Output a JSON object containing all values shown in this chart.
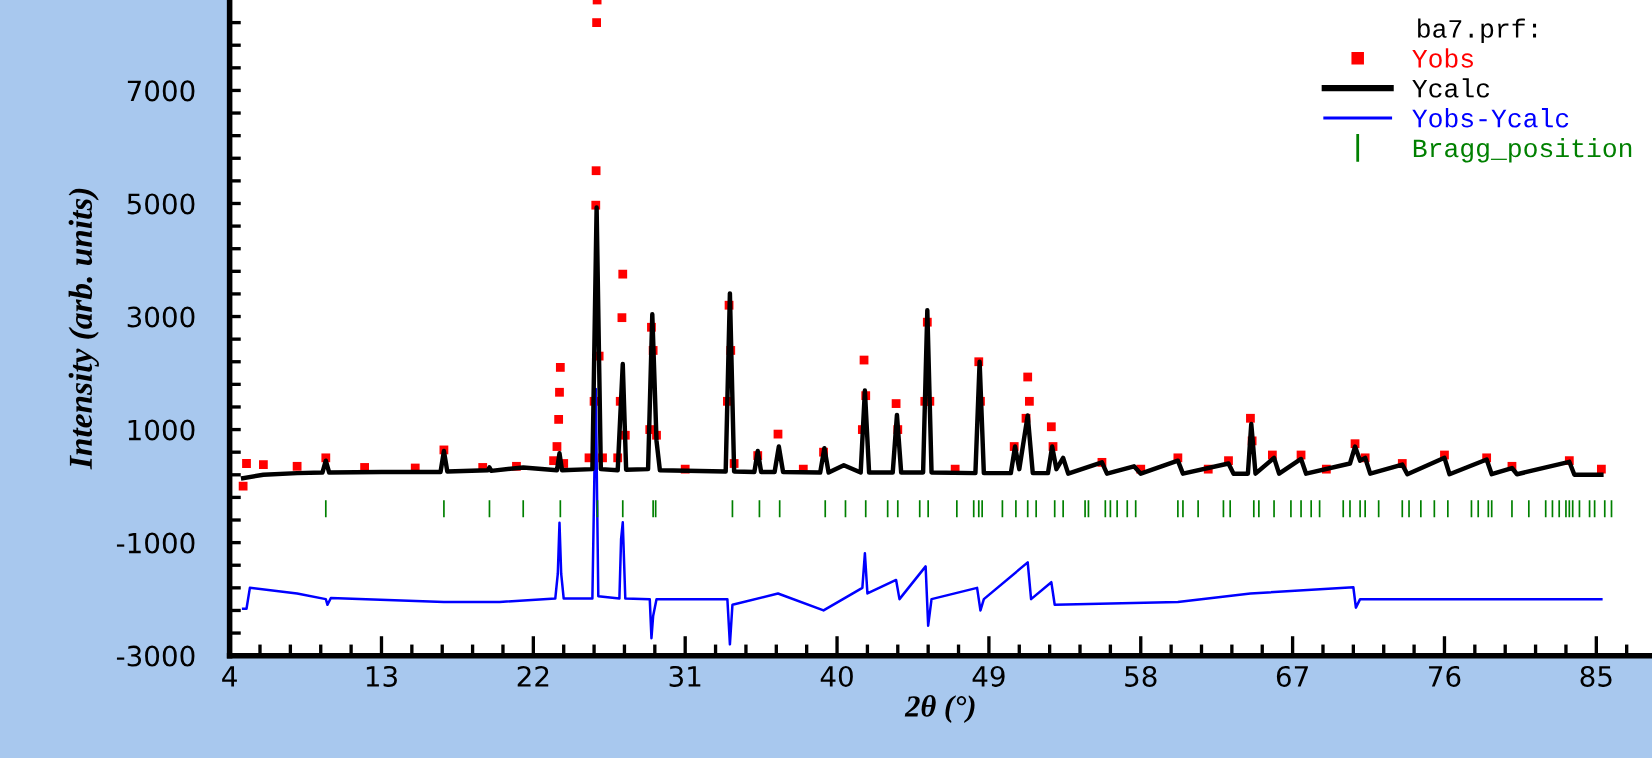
{
  "chart_data": {
    "type": "line",
    "xlabel": "2θ (°)",
    "ylabel": "Intensity (arb. units)",
    "legend_title": "ba7.prf:",
    "xlim": [
      4,
      88.3
    ],
    "ylim": [
      -3000,
      8600
    ],
    "xticks": [
      4,
      {
        "value": 5.8,
        "label": null
      },
      {
        "value": 7.6,
        "label": null
      },
      {
        "value": 9.4,
        "label": null
      },
      {
        "value": 11.2,
        "label": null
      },
      13,
      {
        "value": 14.8,
        "label": null
      },
      {
        "value": 16.6,
        "label": null
      },
      {
        "value": 18.4,
        "label": null
      },
      {
        "value": 20.2,
        "label": null
      },
      22,
      {
        "value": 23.8,
        "label": null
      },
      {
        "value": 25.6,
        "label": null
      },
      {
        "value": 27.4,
        "label": null
      },
      {
        "value": 29.2,
        "label": null
      },
      31,
      {
        "value": 32.8,
        "label": null
      },
      {
        "value": 34.6,
        "label": null
      },
      {
        "value": 36.4,
        "label": null
      },
      {
        "value": 38.2,
        "label": null
      },
      40,
      {
        "value": 41.8,
        "label": null
      },
      {
        "value": 43.6,
        "label": null
      },
      {
        "value": 45.4,
        "label": null
      },
      {
        "value": 47.2,
        "label": null
      },
      49,
      {
        "value": 50.8,
        "label": null
      },
      {
        "value": 52.6,
        "label": null
      },
      {
        "value": 54.4,
        "label": null
      },
      {
        "value": 56.2,
        "label": null
      },
      58,
      {
        "value": 59.8,
        "label": null
      },
      {
        "value": 61.6,
        "label": null
      },
      {
        "value": 63.4,
        "label": null
      },
      {
        "value": 65.2,
        "label": null
      },
      67,
      {
        "value": 68.8,
        "label": null
      },
      {
        "value": 70.6,
        "label": null
      },
      {
        "value": 72.4,
        "label": null
      },
      {
        "value": 74.2,
        "label": null
      },
      76,
      {
        "value": 77.8,
        "label": null
      },
      {
        "value": 79.6,
        "label": null
      },
      {
        "value": 81.4,
        "label": null
      },
      {
        "value": 83.2,
        "label": null
      },
      85,
      {
        "value": 86.8,
        "label": null
      }
    ],
    "yticks": [
      -3000,
      {
        "value": -2600,
        "label": null
      },
      {
        "value": -2200,
        "label": null
      },
      {
        "value": -1800,
        "label": null
      },
      {
        "value": -1400,
        "label": null
      },
      -1000,
      {
        "value": -600,
        "label": null
      },
      {
        "value": -200,
        "label": null
      },
      {
        "value": 200,
        "label": null
      },
      {
        "value": 600,
        "label": null
      },
      1000,
      {
        "value": 1400,
        "label": null
      },
      {
        "value": 1800,
        "label": null
      },
      {
        "value": 2200,
        "label": null
      },
      {
        "value": 2600,
        "label": null
      },
      3000,
      {
        "value": 3400,
        "label": null
      },
      {
        "value": 3800,
        "label": null
      },
      {
        "value": 4200,
        "label": null
      },
      {
        "value": 4600,
        "label": null
      },
      5000,
      {
        "value": 5400,
        "label": null
      },
      {
        "value": 5800,
        "label": null
      },
      {
        "value": 6200,
        "label": null
      },
      {
        "value": 6600,
        "label": null
      },
      7000,
      {
        "value": 7400,
        "label": null
      },
      {
        "value": 7800,
        "label": null
      },
      {
        "value": 8200,
        "label": null
      }
    ],
    "legend": "top right",
    "grid": false,
    "series": [
      {
        "name": "Yobs",
        "type": "scatter",
        "marker": "square",
        "color": "#ff0000",
        "x": [
          4.8,
          5.0,
          6,
          8,
          9.7,
          12,
          15,
          16.7,
          19,
          21,
          23.2,
          23.4,
          23.5,
          23.55,
          23.6,
          23.8,
          25.3,
          25.6,
          25.7,
          25.72,
          25.75,
          25.78,
          25.9,
          26.1,
          27.0,
          27.15,
          27.25,
          27.3,
          27.45,
          28.9,
          29.0,
          29.1,
          29.3,
          31,
          33.5,
          33.6,
          33.7,
          33.9,
          35.3,
          36.5,
          38,
          39.2,
          41.5,
          41.6,
          41.7,
          43.5,
          43.6,
          45.2,
          45.35,
          45.5,
          47,
          48.4,
          48.5,
          50.5,
          51.2,
          51.3,
          51.4,
          52.7,
          52.8,
          55.7,
          58,
          60.2,
          62,
          63.2,
          64.5,
          64.6,
          65.8,
          67.5,
          69,
          70.7,
          71.3,
          73.5,
          76,
          78.5,
          80,
          83.4,
          85.3
        ],
        "values": [
          0,
          400,
          380,
          350,
          500,
          330,
          320,
          640,
          330,
          350,
          450,
          700,
          1180,
          1660,
          2100,
          400,
          500,
          1500,
          4970,
          5580,
          8200,
          8600,
          2300,
          500,
          500,
          1500,
          2980,
          3750,
          900,
          1000,
          2810,
          2400,
          900,
          300,
          1500,
          3200,
          2400,
          400,
          540,
          920,
          300,
          600,
          1000,
          2230,
          1600,
          1460,
          1000,
          1500,
          2900,
          1500,
          300,
          2200,
          1500,
          700,
          1200,
          1930,
          1500,
          1050,
          700,
          420,
          300,
          500,
          300,
          450,
          1200,
          800,
          550,
          550,
          300,
          750,
          500,
          400,
          550,
          500,
          350,
          450,
          300
        ]
      },
      {
        "name": "Ycalc",
        "color": "#000000",
        "x": [
          4.8,
          6,
          8,
          9.5,
          9.7,
          9.9,
          13,
          16.5,
          16.7,
          16.9,
          19.3,
          19.4,
          19.5,
          21.4,
          23.4,
          23.55,
          23.7,
          25.5,
          25.75,
          26.0,
          27.0,
          27.3,
          27.5,
          28.8,
          29.05,
          29.3,
          29.5,
          33.4,
          33.65,
          33.9,
          35.1,
          35.3,
          35.5,
          36.3,
          36.55,
          36.8,
          39.0,
          39.25,
          39.5,
          40.4,
          41.4,
          41.65,
          41.9,
          43.3,
          43.55,
          43.8,
          45.1,
          45.35,
          45.6,
          48.2,
          48.45,
          48.7,
          50.3,
          50.55,
          50.8,
          51.3,
          51.6,
          52.5,
          52.75,
          53.0,
          53.4,
          53.7,
          55.7,
          56.0,
          57.6,
          58,
          60.2,
          60.5,
          63.2,
          63.5,
          64.35,
          64.55,
          64.8,
          65.9,
          66.2,
          67.5,
          67.8,
          70.4,
          70.7,
          71.0,
          71.3,
          71.6,
          73.5,
          73.8,
          76.0,
          76.3,
          78.5,
          78.8,
          80.0,
          80.3,
          83.4,
          83.7,
          85.3
        ],
        "values": [
          140,
          200,
          230,
          240,
          450,
          240,
          250,
          250,
          620,
          260,
          280,
          330,
          270,
          330,
          280,
          580,
          280,
          300,
          4930,
          300,
          280,
          2160,
          290,
          300,
          3040,
          800,
          280,
          260,
          3410,
          260,
          250,
          620,
          250,
          250,
          700,
          250,
          240,
          670,
          240,
          370,
          240,
          1690,
          240,
          240,
          1260,
          240,
          240,
          3110,
          240,
          230,
          2200,
          230,
          230,
          700,
          300,
          1250,
          230,
          230,
          700,
          300,
          500,
          220,
          420,
          220,
          350,
          220,
          450,
          220,
          400,
          220,
          220,
          1100,
          220,
          500,
          220,
          480,
          220,
          400,
          700,
          450,
          500,
          220,
          380,
          210,
          500,
          210,
          470,
          210,
          320,
          210,
          430,
          200,
          200
        ]
      },
      {
        "name": "Yobs-Ycalc",
        "type": "line",
        "color": "#0000ff",
        "x": [
          4.8,
          5.0,
          5.2,
          8,
          9.7,
          9.8,
          10,
          16.7,
          20,
          23.3,
          23.45,
          23.55,
          23.65,
          23.8,
          25.5,
          25.7,
          25.85,
          27.1,
          27.2,
          27.3,
          27.45,
          28.9,
          29.0,
          29.1,
          29.3,
          33.5,
          33.65,
          33.8,
          36.5,
          39.2,
          41.5,
          41.65,
          41.8,
          43.5,
          43.7,
          45.25,
          45.4,
          45.6,
          48.3,
          48.5,
          48.7,
          51.3,
          51.5,
          52.7,
          52.9,
          60.2,
          64.5,
          70.6,
          70.75,
          71,
          85.3
        ],
        "values": [
          -2170,
          -2170,
          -1800,
          -1900,
          -2000,
          -2100,
          -1980,
          -2050,
          -2050,
          -1990,
          -1550,
          -650,
          -1550,
          -1990,
          -1990,
          1720,
          -1950,
          -1990,
          -940,
          -640,
          -1990,
          -2000,
          -2690,
          -2300,
          -2000,
          -2000,
          -2800,
          -2100,
          -1900,
          -2200,
          -1800,
          -1190,
          -1900,
          -1660,
          -2000,
          -1420,
          -2470,
          -2000,
          -1800,
          -2200,
          -2000,
          -1350,
          -2000,
          -1700,
          -2100,
          -2050,
          -1900,
          -1790,
          -2150,
          -2000,
          -2000
        ]
      },
      {
        "name": "Bragg_position",
        "type": "bar",
        "color": "#008000",
        "base": [
          -550,
          -550,
          -550,
          -550,
          -550,
          -550,
          -550,
          -550,
          -550,
          -550,
          -550,
          -550,
          -550,
          -550,
          -550,
          -550,
          -550,
          -550,
          -550,
          -550,
          -550,
          -550,
          -550,
          -550,
          -550,
          -550,
          -550,
          -550,
          -550,
          -550,
          -550,
          -550,
          -550,
          -550,
          -550,
          -550,
          -550,
          -550,
          -550,
          -550,
          -550,
          -550,
          -550,
          -550,
          -550,
          -550,
          -550,
          -550,
          -550,
          -550,
          -550,
          -550,
          -550,
          -550,
          -550,
          -550,
          -550,
          -550,
          -550,
          -550,
          -550,
          -550,
          -550,
          -550,
          -550,
          -550,
          -550,
          -550,
          -550,
          -550,
          -550,
          -550,
          -550,
          -550,
          -550
        ],
        "x": [
          9.7,
          16.7,
          19.4,
          21.4,
          23.6,
          25.8,
          27.3,
          29.1,
          29.25,
          33.8,
          35.4,
          36.6,
          39.3,
          40.5,
          41.7,
          43.0,
          43.6,
          44.9,
          45.4,
          47.1,
          48.1,
          48.4,
          48.6,
          49.8,
          50.6,
          51.3,
          51.8,
          52.9,
          53.4,
          54.7,
          54.9,
          55.9,
          56.2,
          56.6,
          57.2,
          57.7,
          60.2,
          60.5,
          61.4,
          62.9,
          63.3,
          64.7,
          65.0,
          65.9,
          66.9,
          67.5,
          68.1,
          68.6,
          70.0,
          70.4,
          71.0,
          71.3,
          72.1,
          73.5,
          73.9,
          74.6,
          75.4,
          76.2,
          77.6,
          78.0,
          78.6,
          78.8,
          80.0,
          81.0,
          82.0,
          82.4,
          82.8,
          83.2,
          83.4,
          83.6,
          84.0,
          84.6,
          84.9,
          85.5,
          85.9
        ],
        "values": [
          300,
          300,
          300,
          300,
          300,
          300,
          300,
          300,
          300,
          300,
          300,
          300,
          300,
          300,
          300,
          300,
          300,
          300,
          300,
          300,
          300,
          300,
          300,
          300,
          300,
          300,
          300,
          300,
          300,
          300,
          300,
          300,
          300,
          300,
          300,
          300,
          300,
          300,
          300,
          300,
          300,
          300,
          300,
          300,
          300,
          300,
          300,
          300,
          300,
          300,
          300,
          300,
          300,
          300,
          300,
          300,
          300,
          300,
          300,
          300,
          300,
          300,
          300,
          300,
          300,
          300,
          300,
          300,
          300,
          300,
          300,
          300,
          300,
          300,
          300
        ]
      }
    ]
  }
}
